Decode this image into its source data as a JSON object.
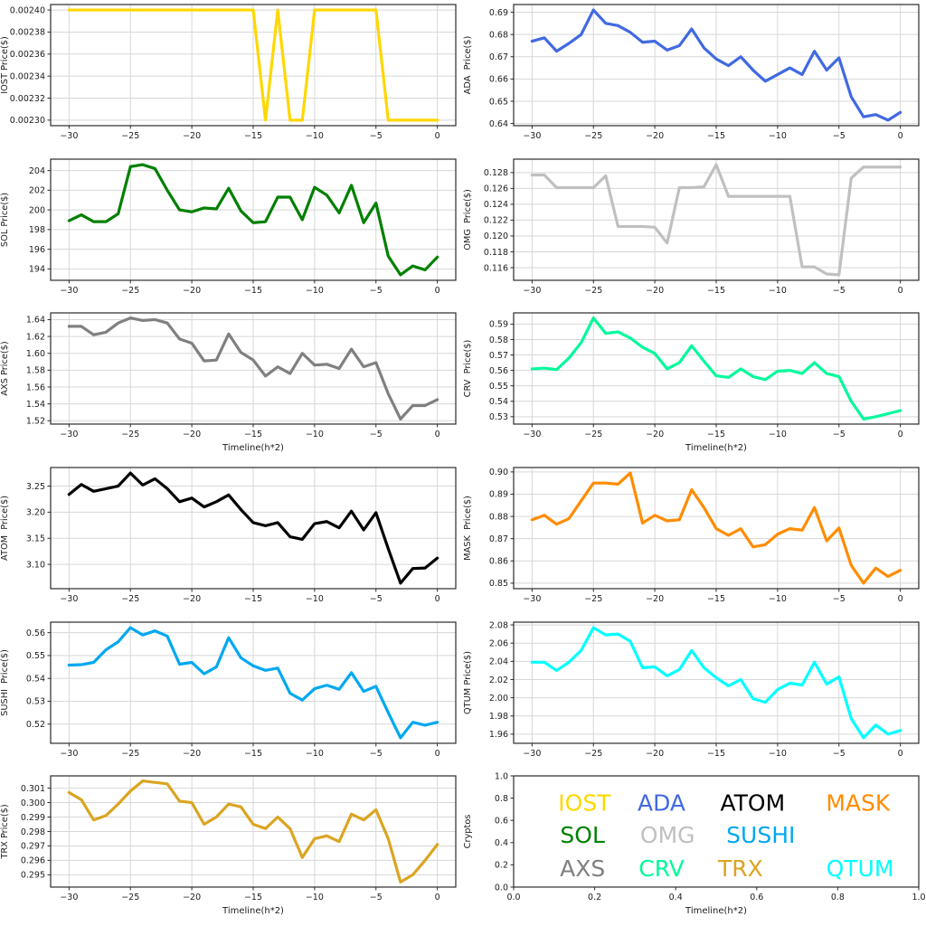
{
  "figure": {
    "background": "#ffffff",
    "grid_color": "#d7d7d7",
    "spine_color": "#2b2b2b",
    "text_color": "#1c1c1c",
    "x_axis_label": "Timeline(h*2)",
    "legend_axis_label": "Cryptos"
  },
  "timeline_x": [
    -30,
    -29,
    -28,
    -27,
    -26,
    -25,
    -24,
    -23,
    -22,
    -21,
    -20,
    -19,
    -18,
    -17,
    -16,
    -15,
    -14,
    -13,
    -12,
    -11,
    -10,
    -9,
    -8,
    -7,
    -6,
    -5,
    -4,
    -3,
    -2,
    -1,
    0
  ],
  "chart_data": [
    {
      "type": "line",
      "name": "IOST",
      "ylabel": "IOST Price($)",
      "xlabel": "",
      "color": "#FFD700",
      "xticks": [
        -30,
        -25,
        -20,
        -15,
        -10,
        -5,
        0
      ],
      "xtick_labels": [
        "−30",
        "−25",
        "−20",
        "−15",
        "−10",
        "−5",
        "0"
      ],
      "yticks": [
        0.0023,
        0.00232,
        0.00234,
        0.00236,
        0.00238,
        0.0024
      ],
      "ytick_labels": [
        "0.00230",
        "0.00232",
        "0.00234",
        "0.00236",
        "0.00238",
        "0.00240"
      ],
      "values": [
        0.0024,
        0.0024,
        0.0024,
        0.0024,
        0.0024,
        0.0024,
        0.0024,
        0.0024,
        0.0024,
        0.0024,
        0.0024,
        0.0024,
        0.0024,
        0.0024,
        0.0024,
        0.0024,
        0.0023,
        0.0024,
        0.0023,
        0.0023,
        0.0024,
        0.0024,
        0.0024,
        0.0024,
        0.0024,
        0.0024,
        0.0023,
        0.0023,
        0.0023,
        0.0023,
        0.0023
      ]
    },
    {
      "type": "line",
      "name": "ADA",
      "ylabel": "ADA  Price($)",
      "xlabel": "",
      "color": "#4169E1",
      "xticks": [
        -30,
        -25,
        -20,
        -15,
        -10,
        -5,
        0
      ],
      "xtick_labels": [
        "−30",
        "−25",
        "−20",
        "−15",
        "−10",
        "−5",
        "0"
      ],
      "yticks": [
        0.64,
        0.65,
        0.66,
        0.67,
        0.68,
        0.69
      ],
      "ytick_labels": [
        "0.64",
        "0.65",
        "0.66",
        "0.67",
        "0.68",
        "0.69"
      ],
      "values": [
        0.677,
        0.6785,
        0.6725,
        0.676,
        0.68,
        0.691,
        0.685,
        0.684,
        0.681,
        0.6765,
        0.677,
        0.673,
        0.675,
        0.6825,
        0.674,
        0.669,
        0.666,
        0.67,
        0.664,
        0.659,
        0.662,
        0.665,
        0.662,
        0.6725,
        0.664,
        0.6695,
        0.652,
        0.643,
        0.644,
        0.6415,
        0.645
      ]
    },
    {
      "type": "line",
      "name": "SOL",
      "ylabel": "SOL Price($)",
      "xlabel": "",
      "color": "#008000",
      "xticks": [
        -30,
        -25,
        -20,
        -15,
        -10,
        -5,
        0
      ],
      "xtick_labels": [
        "−30",
        "−25",
        "−20",
        "−15",
        "−10",
        "−5",
        "0"
      ],
      "yticks": [
        194,
        196,
        198,
        200,
        202,
        204
      ],
      "ytick_labels": [
        "194",
        "196",
        "198",
        "200",
        "202",
        "204"
      ],
      "values": [
        198.9,
        199.5,
        198.8,
        198.8,
        199.6,
        204.4,
        204.6,
        204.2,
        202.0,
        200.0,
        199.8,
        200.2,
        200.1,
        202.2,
        199.9,
        198.7,
        198.8,
        201.3,
        201.3,
        199.0,
        202.3,
        201.5,
        199.7,
        202.5,
        198.7,
        200.7,
        195.3,
        193.4,
        194.3,
        193.9,
        195.2
      ]
    },
    {
      "type": "line",
      "name": "OMG",
      "ylabel": "OMG  Price($)",
      "xlabel": "",
      "color": "#C0C0C0",
      "xticks": [
        -30,
        -25,
        -20,
        -15,
        -10,
        -5,
        0
      ],
      "xtick_labels": [
        "−30",
        "−25",
        "−20",
        "−15",
        "−10",
        "−5",
        "0"
      ],
      "yticks": [
        0.116,
        0.118,
        0.12,
        0.122,
        0.124,
        0.126,
        0.128
      ],
      "ytick_labels": [
        "0.116",
        "0.118",
        "0.120",
        "0.122",
        "0.124",
        "0.126",
        "0.128"
      ],
      "values": [
        0.1277,
        0.1277,
        0.1261,
        0.1261,
        0.1261,
        0.1261,
        0.1276,
        0.1212,
        0.1212,
        0.1212,
        0.1211,
        0.1191,
        0.1261,
        0.1261,
        0.1262,
        0.129,
        0.125,
        0.125,
        0.125,
        0.125,
        0.125,
        0.125,
        0.1161,
        0.1161,
        0.1152,
        0.1151,
        0.1273,
        0.1287,
        0.1287,
        0.1287,
        0.1287
      ]
    },
    {
      "type": "line",
      "name": "AXS",
      "ylabel": "AXS Price($)",
      "xlabel": "Timeline(h*2)",
      "color": "#808080",
      "xticks": [
        -30,
        -25,
        -20,
        -15,
        -10,
        -5,
        0
      ],
      "xtick_labels": [
        "−30",
        "−25",
        "−20",
        "−15",
        "−10",
        "−5",
        "0"
      ],
      "yticks": [
        1.52,
        1.54,
        1.56,
        1.58,
        1.6,
        1.62,
        1.64
      ],
      "ytick_labels": [
        "1.52",
        "1.54",
        "1.56",
        "1.58",
        "1.60",
        "1.62",
        "1.64"
      ],
      "values": [
        1.632,
        1.632,
        1.622,
        1.625,
        1.636,
        1.642,
        1.639,
        1.64,
        1.636,
        1.617,
        1.612,
        1.591,
        1.592,
        1.623,
        1.601,
        1.592,
        1.573,
        1.584,
        1.576,
        1.6,
        1.586,
        1.587,
        1.582,
        1.605,
        1.584,
        1.589,
        1.552,
        1.522,
        1.538,
        1.538,
        1.545
      ]
    },
    {
      "type": "line",
      "name": "CRV",
      "ylabel": "CRV  Price($)",
      "xlabel": "Timeline(h*2)",
      "color": "#00FA9A",
      "xticks": [
        -30,
        -25,
        -20,
        -15,
        -10,
        -5,
        0
      ],
      "xtick_labels": [
        "−30",
        "−25",
        "−20",
        "−15",
        "−10",
        "−5",
        "0"
      ],
      "yticks": [
        0.53,
        0.54,
        0.55,
        0.56,
        0.57,
        0.58,
        0.59
      ],
      "ytick_labels": [
        "0.53",
        "0.54",
        "0.55",
        "0.56",
        "0.57",
        "0.58",
        "0.59"
      ],
      "values": [
        0.561,
        0.5615,
        0.5605,
        0.568,
        0.578,
        0.594,
        0.584,
        0.585,
        0.581,
        0.575,
        0.571,
        0.561,
        0.565,
        0.576,
        0.566,
        0.5565,
        0.5555,
        0.561,
        0.556,
        0.554,
        0.5595,
        0.56,
        0.558,
        0.565,
        0.558,
        0.556,
        0.54,
        0.5285,
        0.53,
        0.532,
        0.534
      ]
    },
    {
      "type": "line",
      "name": "ATOM",
      "ylabel": "ATOM  Price($)",
      "xlabel": "",
      "color": "#000000",
      "xticks": [
        -30,
        -25,
        -20,
        -15,
        -10,
        -5,
        0
      ],
      "xtick_labels": [
        "−30",
        "−25",
        "−20",
        "−15",
        "−10",
        "−5",
        "0"
      ],
      "yticks": [
        3.1,
        3.15,
        3.2,
        3.25
      ],
      "ytick_labels": [
        "3.10",
        "3.15",
        "3.20",
        "3.25"
      ],
      "values": [
        3.234,
        3.253,
        3.24,
        3.245,
        3.25,
        3.275,
        3.252,
        3.264,
        3.245,
        3.22,
        3.227,
        3.21,
        3.22,
        3.233,
        3.205,
        3.18,
        3.174,
        3.18,
        3.153,
        3.148,
        3.178,
        3.182,
        3.17,
        3.202,
        3.166,
        3.199,
        3.13,
        3.064,
        3.092,
        3.093,
        3.112
      ]
    },
    {
      "type": "line",
      "name": "MASK",
      "ylabel": "MASK  Price($)",
      "xlabel": "",
      "color": "#FF8C00",
      "xticks": [
        -30,
        -25,
        -20,
        -15,
        -10,
        -5,
        0
      ],
      "xtick_labels": [
        "−30",
        "−25",
        "−20",
        "−15",
        "−10",
        "−5",
        "0"
      ],
      "yticks": [
        0.85,
        0.86,
        0.87,
        0.88,
        0.89,
        0.9
      ],
      "ytick_labels": [
        "0.85",
        "0.86",
        "0.87",
        "0.88",
        "0.89",
        "0.90"
      ],
      "values": [
        0.8785,
        0.8805,
        0.8765,
        0.879,
        0.887,
        0.895,
        0.895,
        0.8945,
        0.8995,
        0.877,
        0.8805,
        0.878,
        0.8785,
        0.892,
        0.884,
        0.8745,
        0.8715,
        0.8745,
        0.8663,
        0.8673,
        0.872,
        0.8745,
        0.8738,
        0.884,
        0.869,
        0.8748,
        0.858,
        0.85,
        0.8568,
        0.853,
        0.8558
      ]
    },
    {
      "type": "line",
      "name": "SUSHI",
      "ylabel": "SUSHI  Price($)",
      "xlabel": "",
      "color": "#00A8F0",
      "xticks": [
        -30,
        -25,
        -20,
        -15,
        -10,
        -5,
        0
      ],
      "xtick_labels": [
        "−30",
        "−25",
        "−20",
        "−15",
        "−10",
        "−5",
        "0"
      ],
      "yticks": [
        0.52,
        0.53,
        0.54,
        0.55,
        0.56
      ],
      "ytick_labels": [
        "0.52",
        "0.53",
        "0.54",
        "0.55",
        "0.56"
      ],
      "values": [
        0.5458,
        0.546,
        0.547,
        0.5525,
        0.556,
        0.5622,
        0.559,
        0.5608,
        0.5585,
        0.5462,
        0.547,
        0.542,
        0.545,
        0.5578,
        0.549,
        0.5455,
        0.5435,
        0.5445,
        0.5335,
        0.5305,
        0.5355,
        0.537,
        0.5352,
        0.5425,
        0.5343,
        0.5365,
        0.525,
        0.514,
        0.5208,
        0.5195,
        0.5208
      ]
    },
    {
      "type": "line",
      "name": "QTUM",
      "ylabel": "QTUM Price($)",
      "xlabel": "",
      "color": "#00FFFF",
      "xticks": [
        -30,
        -25,
        -20,
        -15,
        -10,
        -5,
        0
      ],
      "xtick_labels": [
        "−30",
        "−25",
        "−20",
        "−15",
        "−10",
        "−5",
        "0"
      ],
      "yticks": [
        1.96,
        1.98,
        2.0,
        2.02,
        2.04,
        2.06,
        2.08
      ],
      "ytick_labels": [
        "1.96",
        "1.98",
        "2.00",
        "2.02",
        "2.04",
        "2.06",
        "2.08"
      ],
      "values": [
        2.039,
        2.039,
        2.03,
        2.039,
        2.052,
        2.077,
        2.069,
        2.07,
        2.062,
        2.033,
        2.034,
        2.024,
        2.031,
        2.052,
        2.033,
        2.022,
        2.013,
        2.02,
        1.999,
        1.995,
        2.009,
        2.016,
        2.014,
        2.039,
        2.015,
        2.023,
        1.977,
        1.956,
        1.97,
        1.96,
        1.964
      ]
    },
    {
      "type": "line",
      "name": "TRX",
      "ylabel": "TRX Price($)",
      "xlabel": "Timeline(h*2)",
      "color": "#DAA520",
      "xticks": [
        -30,
        -25,
        -20,
        -15,
        -10,
        -5,
        0
      ],
      "xtick_labels": [
        "−30",
        "−25",
        "−20",
        "−15",
        "−10",
        "−5",
        "0"
      ],
      "yticks": [
        0.295,
        0.296,
        0.297,
        0.298,
        0.299,
        0.3,
        0.301
      ],
      "ytick_labels": [
        "0.295",
        "0.296",
        "0.297",
        "0.298",
        "0.299",
        "0.300",
        "0.301"
      ],
      "values": [
        0.3007,
        0.3002,
        0.2988,
        0.2991,
        0.2999,
        0.3008,
        0.3015,
        0.3014,
        0.3013,
        0.3001,
        0.3,
        0.2985,
        0.299,
        0.2999,
        0.2997,
        0.2985,
        0.2982,
        0.299,
        0.2982,
        0.2962,
        0.2975,
        0.2977,
        0.2973,
        0.2992,
        0.2988,
        0.2995,
        0.2975,
        0.2945,
        0.295,
        0.296,
        0.2971
      ]
    },
    {
      "type": "legend",
      "name": "LEGEND",
      "ylabel": "Cryptos",
      "xlabel": "Timeline(h*2)",
      "xticks": [
        0,
        0.2,
        0.4,
        0.6,
        0.8,
        1
      ],
      "xtick_labels": [
        "0.0",
        "0.2",
        "0.4",
        "0.6",
        "0.8",
        "1.0"
      ],
      "yticks": [
        0,
        0.2,
        0.4,
        0.6,
        0.8,
        1
      ],
      "ytick_labels": [
        "0.0",
        "0.2",
        "0.4",
        "0.6",
        "0.8",
        "1.0"
      ],
      "items": [
        {
          "label": "IOST",
          "color": "#FFD700",
          "x": 0.175,
          "y": 0.76
        },
        {
          "label": "ADA",
          "color": "#4169E1",
          "x": 0.365,
          "y": 0.76
        },
        {
          "label": "ATOM",
          "color": "#000000",
          "x": 0.59,
          "y": 0.76
        },
        {
          "label": "MASK",
          "color": "#FF8C00",
          "x": 0.85,
          "y": 0.76
        },
        {
          "label": "SOL",
          "color": "#008000",
          "x": 0.17,
          "y": 0.47
        },
        {
          "label": "OMG",
          "color": "#C0C0C0",
          "x": 0.38,
          "y": 0.47
        },
        {
          "label": "SUSHI",
          "color": "#00A8F0",
          "x": 0.61,
          "y": 0.47
        },
        {
          "label": "AXS",
          "color": "#808080",
          "x": 0.17,
          "y": 0.17
        },
        {
          "label": "CRV",
          "color": "#00FA9A",
          "x": 0.365,
          "y": 0.17
        },
        {
          "label": "TRX",
          "color": "#DAA520",
          "x": 0.56,
          "y": 0.17
        },
        {
          "label": "QTUM",
          "color": "#00FFFF",
          "x": 0.855,
          "y": 0.17
        }
      ]
    }
  ]
}
